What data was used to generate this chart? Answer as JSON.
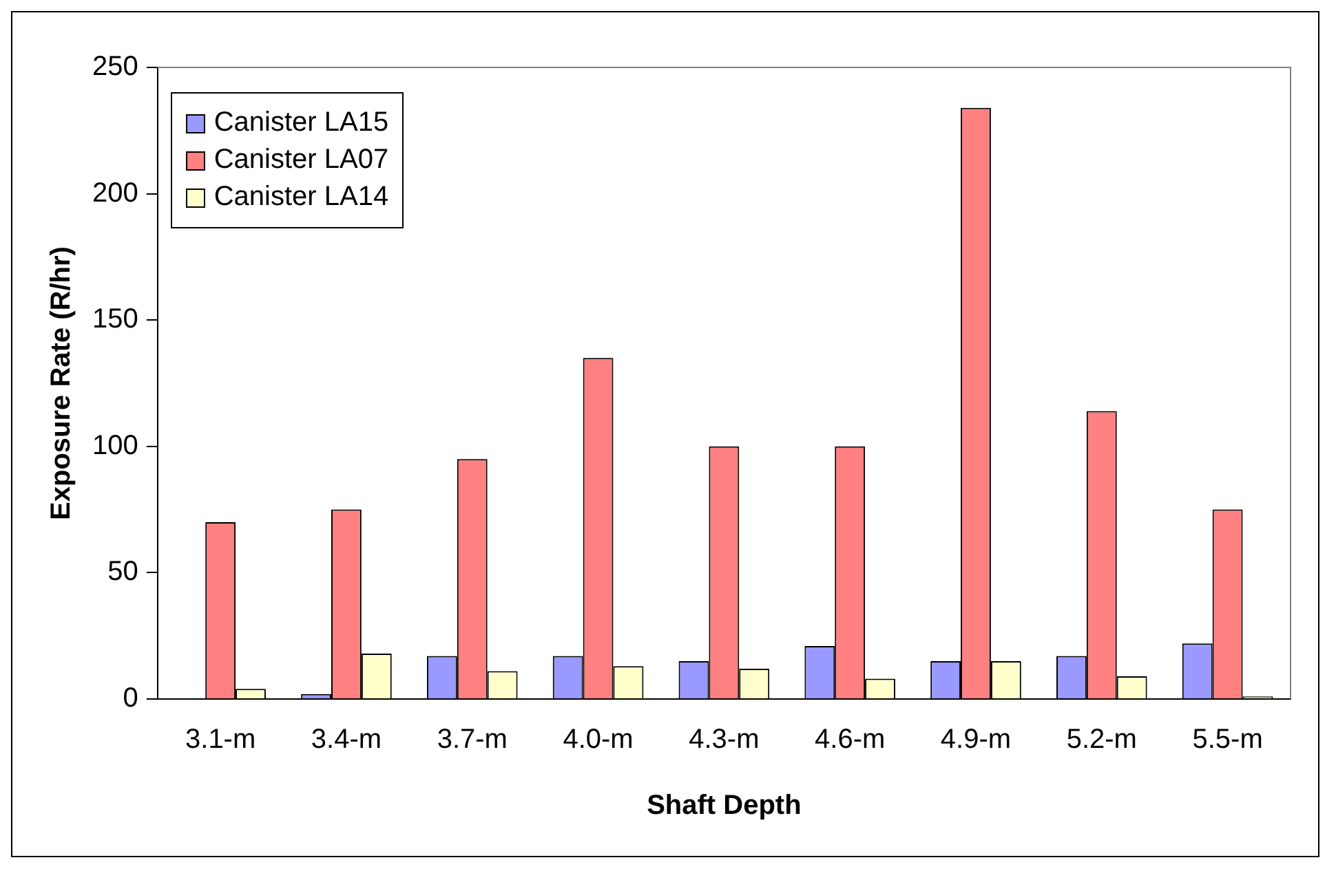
{
  "chart_data": {
    "type": "bar",
    "xlabel": "Shaft Depth",
    "ylabel": "Exposure Rate (R/hr)",
    "categories": [
      "3.1-m",
      "3.4-m",
      "3.7-m",
      "4.0-m",
      "4.3-m",
      "4.6-m",
      "4.9-m",
      "5.2-m",
      "5.5-m"
    ],
    "series": [
      {
        "name": "Canister LA15",
        "color": "#9999ff",
        "values": [
          0,
          2,
          17,
          17,
          15,
          21,
          15,
          17,
          22
        ]
      },
      {
        "name": "Canister LA07",
        "color": "#ff8080",
        "values": [
          70,
          75,
          95,
          135,
          100,
          100,
          234,
          114,
          75
        ]
      },
      {
        "name": "Canister LA14",
        "color": "#ffffcc",
        "values": [
          4,
          18,
          11,
          13,
          12,
          8,
          15,
          9,
          1
        ]
      }
    ],
    "ylim": [
      0,
      250
    ],
    "yticks": [
      0,
      50,
      100,
      150,
      200,
      250
    ],
    "grid": false,
    "legend": "top left"
  }
}
